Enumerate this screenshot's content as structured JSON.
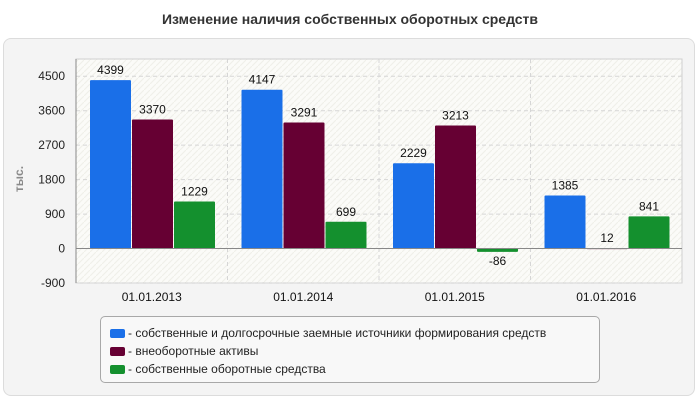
{
  "chart_data": {
    "type": "bar",
    "title": "Изменение наличия собственных оборотных средств",
    "ylabel": "тыс.",
    "xlabel": "",
    "categories": [
      "01.01.2013",
      "01.01.2014",
      "01.01.2015",
      "01.01.2016"
    ],
    "series": [
      {
        "name": "- собственные и долгосрочные заемные источники формирования средств",
        "color": "#1a6fe8",
        "values": [
          4399,
          4147,
          2229,
          1385
        ]
      },
      {
        "name": "- внеоборотные активы",
        "color": "#660033",
        "values": [
          3370,
          3291,
          3213,
          12
        ]
      },
      {
        "name": "- собственные оборотные средства",
        "color": "#14902e",
        "values": [
          1229,
          699,
          -86,
          841
        ]
      }
    ],
    "ylim": [
      -900,
      4950
    ],
    "yticks": [
      -900,
      0,
      900,
      1800,
      2700,
      3600,
      4500
    ],
    "grid": true,
    "legend_position": "bottom"
  }
}
